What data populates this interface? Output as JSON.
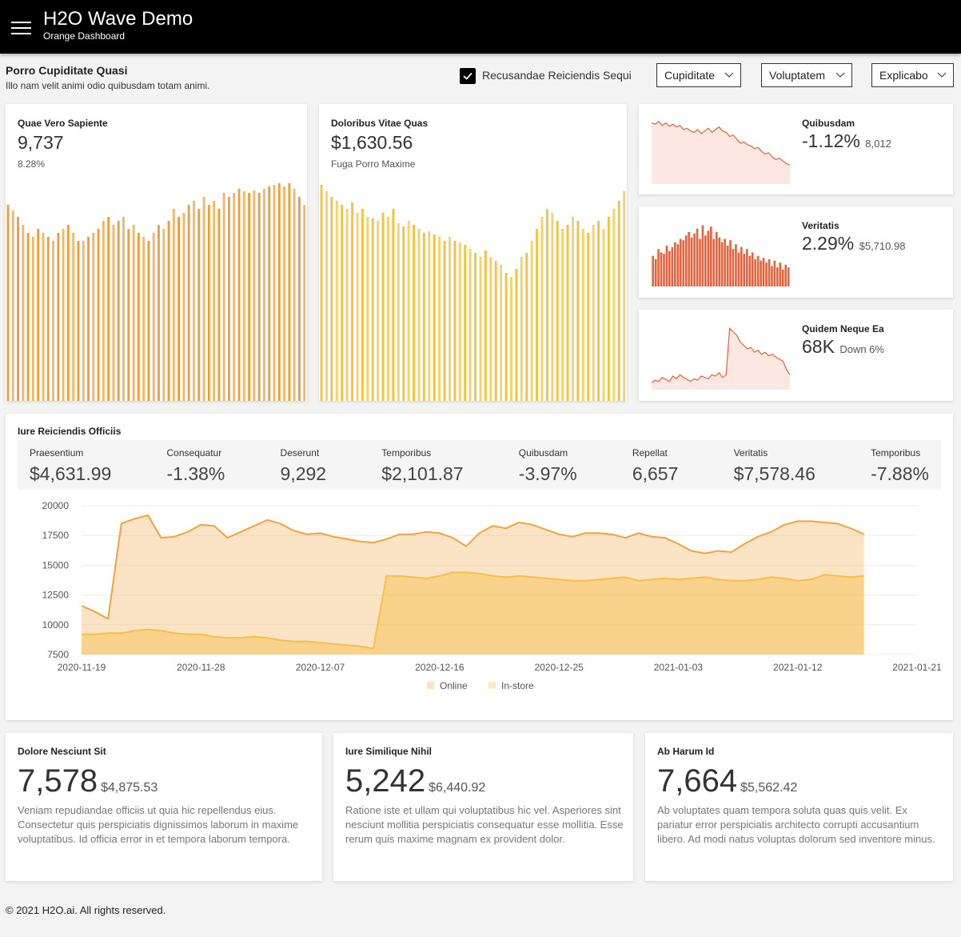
{
  "header": {
    "title": "H2O Wave Demo",
    "subtitle": "Orange Dashboard"
  },
  "toolbar": {
    "title": "Porro Cupiditate Quasi",
    "subtitle": "Illo nam velit animi odio quibusdam totam animi.",
    "checkbox": {
      "label": "Recusandae Reiciendis Sequi",
      "checked": true
    },
    "dropdowns": [
      "Cupiditate",
      "Voluptatem",
      "Explicabo"
    ]
  },
  "bar_cards": [
    {
      "title": "Quae Vero Sapiente",
      "value": "9,737",
      "aux": "8.28%",
      "color": "#f29c38",
      "values": [
        245,
        238,
        230,
        220,
        210,
        205,
        215,
        210,
        205,
        200,
        210,
        215,
        220,
        210,
        200,
        200,
        205,
        210,
        215,
        225,
        230,
        220,
        225,
        230,
        215,
        220,
        210,
        205,
        200,
        210,
        220,
        215,
        225,
        240,
        230,
        235,
        245,
        250,
        240,
        255,
        245,
        250,
        240,
        260,
        255,
        260,
        265,
        262,
        260,
        263,
        260,
        265,
        268,
        270,
        272,
        268,
        272,
        265,
        255,
        245
      ]
    },
    {
      "title": "Doloribus Vitae Quas",
      "value": "$1,630.56",
      "aux": "Fuga Porro Maxime",
      "color": "#f6c23e",
      "values": [
        270,
        262,
        255,
        250,
        245,
        240,
        248,
        235,
        240,
        230,
        228,
        225,
        235,
        230,
        240,
        222,
        218,
        225,
        220,
        215,
        210,
        212,
        208,
        205,
        200,
        205,
        200,
        198,
        195,
        190,
        185,
        180,
        188,
        180,
        175,
        170,
        160,
        155,
        165,
        180,
        185,
        200,
        215,
        230,
        240,
        235,
        225,
        215,
        220,
        230,
        225,
        215,
        210,
        220,
        225,
        215,
        230,
        240,
        250,
        262
      ]
    }
  ],
  "spark_cards": [
    {
      "title": "Quibusdam",
      "value": "-1.12%",
      "aux": "8,012",
      "type": "area",
      "color": "#e9603a",
      "values": [
        90,
        88,
        92,
        86,
        90,
        85,
        88,
        84,
        86,
        80,
        82,
        78,
        76,
        80,
        74,
        78,
        82,
        76,
        80,
        84,
        78,
        76,
        70,
        72,
        66,
        60,
        62,
        58,
        56,
        52,
        54,
        48,
        44,
        46,
        40,
        36,
        38,
        34,
        30,
        28
      ]
    },
    {
      "title": "Veritatis",
      "value": "2.29%",
      "aux": "$5,710.98",
      "type": "bar",
      "color": "#e9603a",
      "values": [
        45,
        40,
        55,
        50,
        48,
        60,
        52,
        58,
        65,
        62,
        70,
        68,
        75,
        80,
        72,
        78,
        85,
        70,
        90,
        75,
        82,
        88,
        70,
        80,
        72,
        65,
        70,
        60,
        68,
        55,
        62,
        50,
        58,
        48,
        55,
        45,
        50,
        40,
        45,
        38,
        42,
        35,
        40,
        30,
        38,
        28,
        35,
        25,
        32,
        28
      ]
    },
    {
      "title": "Quidem Neque Ea",
      "value": "68K",
      "aux": "Down 6%",
      "type": "area",
      "color": "#e9603a",
      "values": [
        10,
        14,
        12,
        18,
        15,
        12,
        20,
        16,
        22,
        18,
        15,
        12,
        16,
        14,
        20,
        18,
        16,
        22,
        20,
        25,
        18,
        22,
        90,
        85,
        80,
        70,
        65,
        60,
        62,
        55,
        58,
        52,
        55,
        50,
        52,
        48,
        45,
        42,
        30,
        22
      ]
    }
  ],
  "main_card": {
    "title": "Iure Reiciendis Officiis",
    "stats": [
      {
        "label": "Praesentium",
        "value": "$4,631.99"
      },
      {
        "label": "Consequatur",
        "value": "-1.38%"
      },
      {
        "label": "Deserunt",
        "value": "9,292"
      },
      {
        "label": "Temporibus",
        "value": "$2,101.87"
      },
      {
        "label": "Quibusdam",
        "value": "-3.97%"
      },
      {
        "label": "Repellat",
        "value": "6,657"
      },
      {
        "label": "Veritatis",
        "value": "$7,578.46"
      },
      {
        "label": "Temporibus",
        "value": "-7.88%"
      }
    ],
    "chart_data": {
      "type": "area",
      "x": [
        "2020-11-19",
        "2020-11-20",
        "2020-11-21",
        "2020-11-22",
        "2020-11-23",
        "2020-11-24",
        "2020-11-25",
        "2020-11-26",
        "2020-11-27",
        "2020-11-28",
        "2020-11-29",
        "2020-11-30",
        "2020-12-01",
        "2020-12-02",
        "2020-12-03",
        "2020-12-04",
        "2020-12-05",
        "2020-12-06",
        "2020-12-07",
        "2020-12-08",
        "2020-12-09",
        "2020-12-10",
        "2020-12-11",
        "2020-12-12",
        "2020-12-13",
        "2020-12-14",
        "2020-12-15",
        "2020-12-16",
        "2020-12-17",
        "2020-12-18",
        "2020-12-19",
        "2020-12-20",
        "2020-12-21",
        "2020-12-22",
        "2020-12-23",
        "2020-12-24",
        "2020-12-25",
        "2020-12-26",
        "2020-12-27",
        "2020-12-28",
        "2020-12-29",
        "2020-12-30",
        "2020-12-31",
        "2021-01-01",
        "2021-01-02",
        "2021-01-03",
        "2021-01-04",
        "2021-01-05",
        "2021-01-06",
        "2021-01-07",
        "2021-01-08",
        "2021-01-09",
        "2021-01-10",
        "2021-01-11",
        "2021-01-12",
        "2021-01-13",
        "2021-01-14",
        "2021-01-15",
        "2021-01-16",
        "2021-01-17"
      ],
      "series": [
        {
          "name": "Online",
          "color": "#f3a23f",
          "values": [
            11600,
            11100,
            10500,
            18500,
            18900,
            19200,
            17300,
            17400,
            17800,
            18400,
            18300,
            17300,
            17800,
            18300,
            18800,
            18500,
            17900,
            17600,
            17700,
            17400,
            17200,
            17000,
            16900,
            17200,
            17600,
            17600,
            17800,
            17700,
            17300,
            16600,
            17700,
            18300,
            18100,
            18600,
            18400,
            18000,
            17600,
            17400,
            17700,
            17700,
            17600,
            17300,
            17700,
            17400,
            17300,
            16800,
            16200,
            16000,
            16200,
            16100,
            16800,
            17400,
            17800,
            18400,
            18700,
            18700,
            18600,
            18500,
            18100,
            17600
          ]
        },
        {
          "name": "In-store",
          "color": "#f7bf45",
          "values": [
            9200,
            9200,
            9300,
            9300,
            9500,
            9600,
            9500,
            9300,
            9200,
            9200,
            9000,
            8900,
            8900,
            9000,
            8900,
            8700,
            8600,
            8600,
            8500,
            8400,
            8300,
            8200,
            8000,
            14100,
            14100,
            14000,
            13900,
            14100,
            14400,
            14400,
            14300,
            14100,
            14000,
            14100,
            14000,
            13900,
            13800,
            13700,
            13700,
            13800,
            13900,
            14000,
            13700,
            13800,
            13900,
            13800,
            13900,
            14000,
            13800,
            13700,
            13700,
            13800,
            14000,
            13900,
            13700,
            13800,
            14200,
            14100,
            14000,
            14100
          ]
        }
      ],
      "xlim": [
        "2020-11-19",
        "2021-01-21"
      ],
      "xticks": [
        "2020-11-19",
        "2020-11-28",
        "2020-12-07",
        "2020-12-16",
        "2020-12-25",
        "2021-01-03",
        "2021-01-12",
        "2021-01-21"
      ],
      "ylim": [
        7500,
        20000
      ],
      "yticks": [
        7500,
        10000,
        12500,
        15000,
        17500,
        20000
      ],
      "grid": true
    }
  },
  "small_cards": [
    {
      "title": "Dolore Nesciunt Sit",
      "value": "7,578",
      "aux": "$4,875.53",
      "caption": "Veniam repudiandae officiis ut quia hic repellendus eius. Consectetur quis perspiciatis dignissimos laborum in maxime voluptatibus. Id officia error in et tempora laborum tempora."
    },
    {
      "title": "Iure Similique Nihil",
      "value": "5,242",
      "aux": "$6,440.92",
      "caption": "Ratione iste et ullam qui voluptatibus hic vel. Asperiores sint nesciunt mollitia perspiciatis consequatur esse mollitia. Esse rerum quis maxime magnam ex provident dolor."
    },
    {
      "title": "Ab Harum Id",
      "value": "7,664",
      "aux": "$5,562.42",
      "caption": "Ab voluptates quam tempora soluta quas quis velit. Ex pariatur error perspiciatis architecto corrupti accusantium libero. Ad modi natus voluptas dolorum sed inventore minus."
    }
  ],
  "footer": {
    "prefix": "© 2021",
    "link": "H2O.ai",
    "suffix": ". All rights reserved."
  }
}
